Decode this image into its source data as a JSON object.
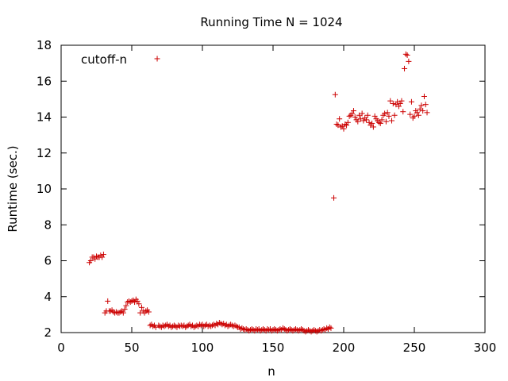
{
  "chart_data": {
    "type": "scatter",
    "title": "Running Time N = 1024",
    "xlabel": "n",
    "ylabel": "Runtime (sec.)",
    "xlim": [
      0,
      300
    ],
    "ylim": [
      2,
      18
    ],
    "xticks": [
      0,
      50,
      100,
      150,
      200,
      250,
      300
    ],
    "yticks": [
      2,
      4,
      6,
      8,
      10,
      12,
      14,
      16,
      18
    ],
    "grid": false,
    "legend": "top-left",
    "marker": "plus",
    "series": [
      {
        "name": "cutoff-n",
        "color": "#cc0000",
        "points": [
          [
            20,
            5.9
          ],
          [
            21,
            6.0
          ],
          [
            22,
            6.2
          ],
          [
            23,
            6.2
          ],
          [
            24,
            6.1
          ],
          [
            25,
            6.25
          ],
          [
            26,
            6.2
          ],
          [
            27,
            6.2
          ],
          [
            28,
            6.3
          ],
          [
            29,
            6.2
          ],
          [
            30,
            6.35
          ],
          [
            31,
            3.1
          ],
          [
            32,
            3.2
          ],
          [
            33,
            3.75
          ],
          [
            34,
            3.2
          ],
          [
            35,
            3.2
          ],
          [
            36,
            3.25
          ],
          [
            37,
            3.15
          ],
          [
            38,
            3.1
          ],
          [
            39,
            3.15
          ],
          [
            40,
            3.1
          ],
          [
            41,
            3.1
          ],
          [
            42,
            3.15
          ],
          [
            43,
            3.2
          ],
          [
            44,
            3.1
          ],
          [
            45,
            3.3
          ],
          [
            46,
            3.5
          ],
          [
            47,
            3.7
          ],
          [
            48,
            3.75
          ],
          [
            49,
            3.7
          ],
          [
            50,
            3.75
          ],
          [
            51,
            3.8
          ],
          [
            52,
            3.7
          ],
          [
            53,
            3.85
          ],
          [
            54,
            3.75
          ],
          [
            55,
            3.6
          ],
          [
            56,
            3.1
          ],
          [
            57,
            3.4
          ],
          [
            58,
            3.2
          ],
          [
            59,
            3.1
          ],
          [
            60,
            3.2
          ],
          [
            61,
            3.25
          ],
          [
            62,
            3.15
          ],
          [
            63,
            2.4
          ],
          [
            64,
            2.45
          ],
          [
            65,
            2.35
          ],
          [
            66,
            2.4
          ],
          [
            67,
            2.3
          ],
          [
            68,
            17.25
          ],
          [
            69,
            2.4
          ],
          [
            70,
            2.35
          ],
          [
            71,
            2.3
          ],
          [
            72,
            2.4
          ],
          [
            73,
            2.35
          ],
          [
            74,
            2.4
          ],
          [
            75,
            2.45
          ],
          [
            76,
            2.35
          ],
          [
            77,
            2.4
          ],
          [
            78,
            2.3
          ],
          [
            79,
            2.35
          ],
          [
            80,
            2.4
          ],
          [
            81,
            2.35
          ],
          [
            82,
            2.3
          ],
          [
            83,
            2.4
          ],
          [
            84,
            2.35
          ],
          [
            85,
            2.4
          ],
          [
            86,
            2.35
          ],
          [
            87,
            2.4
          ],
          [
            88,
            2.3
          ],
          [
            89,
            2.35
          ],
          [
            90,
            2.4
          ],
          [
            91,
            2.45
          ],
          [
            92,
            2.35
          ],
          [
            93,
            2.4
          ],
          [
            94,
            2.3
          ],
          [
            95,
            2.35
          ],
          [
            96,
            2.4
          ],
          [
            97,
            2.35
          ],
          [
            98,
            2.45
          ],
          [
            99,
            2.4
          ],
          [
            100,
            2.45
          ],
          [
            101,
            2.35
          ],
          [
            102,
            2.4
          ],
          [
            103,
            2.45
          ],
          [
            104,
            2.35
          ],
          [
            105,
            2.4
          ],
          [
            106,
            2.35
          ],
          [
            107,
            2.4
          ],
          [
            108,
            2.45
          ],
          [
            109,
            2.4
          ],
          [
            110,
            2.5
          ],
          [
            111,
            2.45
          ],
          [
            112,
            2.55
          ],
          [
            113,
            2.5
          ],
          [
            114,
            2.45
          ],
          [
            115,
            2.5
          ],
          [
            116,
            2.4
          ],
          [
            117,
            2.45
          ],
          [
            118,
            2.35
          ],
          [
            119,
            2.4
          ],
          [
            120,
            2.45
          ],
          [
            121,
            2.4
          ],
          [
            122,
            2.35
          ],
          [
            123,
            2.4
          ],
          [
            124,
            2.35
          ],
          [
            125,
            2.3
          ],
          [
            126,
            2.3
          ],
          [
            127,
            2.2
          ],
          [
            128,
            2.25
          ],
          [
            129,
            2.2
          ],
          [
            130,
            2.15
          ],
          [
            131,
            2.2
          ],
          [
            132,
            2.15
          ],
          [
            133,
            2.1
          ],
          [
            134,
            2.15
          ],
          [
            135,
            2.2
          ],
          [
            136,
            2.15
          ],
          [
            137,
            2.1
          ],
          [
            138,
            2.2
          ],
          [
            139,
            2.15
          ],
          [
            140,
            2.2
          ],
          [
            141,
            2.1
          ],
          [
            142,
            2.15
          ],
          [
            143,
            2.2
          ],
          [
            144,
            2.15
          ],
          [
            145,
            2.1
          ],
          [
            146,
            2.2
          ],
          [
            147,
            2.15
          ],
          [
            148,
            2.2
          ],
          [
            149,
            2.1
          ],
          [
            150,
            2.15
          ],
          [
            151,
            2.2
          ],
          [
            152,
            2.15
          ],
          [
            153,
            2.1
          ],
          [
            154,
            2.15
          ],
          [
            155,
            2.2
          ],
          [
            156,
            2.15
          ],
          [
            157,
            2.25
          ],
          [
            158,
            2.2
          ],
          [
            159,
            2.15
          ],
          [
            160,
            2.1
          ],
          [
            161,
            2.15
          ],
          [
            162,
            2.2
          ],
          [
            163,
            2.15
          ],
          [
            164,
            2.1
          ],
          [
            165,
            2.15
          ],
          [
            166,
            2.2
          ],
          [
            167,
            2.15
          ],
          [
            168,
            2.1
          ],
          [
            169,
            2.15
          ],
          [
            170,
            2.2
          ],
          [
            171,
            2.15
          ],
          [
            172,
            2.1
          ],
          [
            173,
            2.05
          ],
          [
            174,
            2.1
          ],
          [
            175,
            2.15
          ],
          [
            176,
            2.1
          ],
          [
            177,
            2.05
          ],
          [
            178,
            2.1
          ],
          [
            179,
            2.15
          ],
          [
            180,
            2.1
          ],
          [
            181,
            2.05
          ],
          [
            182,
            2.1
          ],
          [
            183,
            2.15
          ],
          [
            184,
            2.1
          ],
          [
            185,
            2.15
          ],
          [
            186,
            2.2
          ],
          [
            187,
            2.15
          ],
          [
            188,
            2.25
          ],
          [
            189,
            2.2
          ],
          [
            190,
            2.3
          ],
          [
            191,
            2.25
          ],
          [
            193,
            9.5
          ],
          [
            194,
            15.25
          ],
          [
            195,
            13.6
          ],
          [
            196,
            13.55
          ],
          [
            197,
            13.9
          ],
          [
            198,
            13.45
          ],
          [
            199,
            13.5
          ],
          [
            200,
            13.35
          ],
          [
            201,
            13.6
          ],
          [
            202,
            13.55
          ],
          [
            203,
            13.7
          ],
          [
            204,
            14.05
          ],
          [
            205,
            14.1
          ],
          [
            206,
            14.2
          ],
          [
            207,
            14.35
          ],
          [
            208,
            14.0
          ],
          [
            209,
            13.85
          ],
          [
            210,
            13.75
          ],
          [
            211,
            14.1
          ],
          [
            212,
            13.9
          ],
          [
            213,
            14.2
          ],
          [
            214,
            13.8
          ],
          [
            215,
            13.95
          ],
          [
            216,
            13.85
          ],
          [
            217,
            14.1
          ],
          [
            218,
            13.7
          ],
          [
            219,
            13.55
          ],
          [
            220,
            13.65
          ],
          [
            221,
            13.45
          ],
          [
            222,
            14.05
          ],
          [
            223,
            13.9
          ],
          [
            224,
            13.8
          ],
          [
            225,
            13.7
          ],
          [
            226,
            13.65
          ],
          [
            227,
            13.85
          ],
          [
            228,
            14.1
          ],
          [
            229,
            14.2
          ],
          [
            230,
            13.75
          ],
          [
            231,
            14.25
          ],
          [
            232,
            14.05
          ],
          [
            233,
            14.9
          ],
          [
            234,
            13.8
          ],
          [
            235,
            14.75
          ],
          [
            236,
            14.1
          ],
          [
            237,
            14.7
          ],
          [
            238,
            14.85
          ],
          [
            239,
            14.6
          ],
          [
            240,
            14.75
          ],
          [
            241,
            14.9
          ],
          [
            242,
            14.3
          ],
          [
            243,
            16.7
          ],
          [
            244,
            17.5
          ],
          [
            245,
            17.45
          ],
          [
            246,
            17.1
          ],
          [
            247,
            14.15
          ],
          [
            248,
            14.85
          ],
          [
            249,
            13.95
          ],
          [
            250,
            14.05
          ],
          [
            251,
            14.35
          ],
          [
            252,
            14.25
          ],
          [
            253,
            14.1
          ],
          [
            254,
            14.45
          ],
          [
            255,
            14.65
          ],
          [
            256,
            14.35
          ],
          [
            257,
            15.15
          ],
          [
            258,
            14.7
          ],
          [
            259,
            14.25
          ]
        ]
      }
    ]
  }
}
